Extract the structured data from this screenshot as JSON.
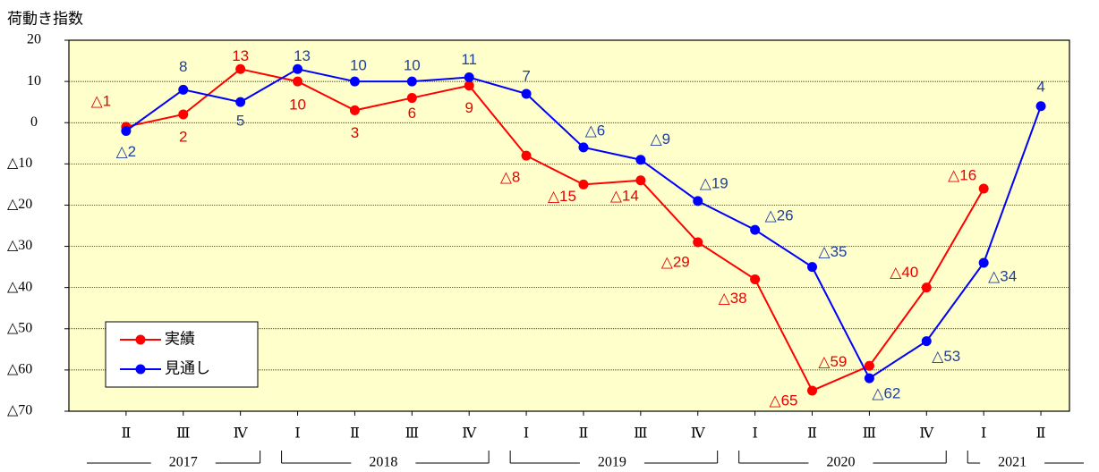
{
  "chart_data": {
    "type": "line",
    "y_axis_title": "荷動き指数",
    "categories": [
      "Ⅱ",
      "Ⅲ",
      "Ⅳ",
      "Ⅰ",
      "Ⅱ",
      "Ⅲ",
      "Ⅳ",
      "Ⅰ",
      "Ⅱ",
      "Ⅲ",
      "Ⅳ",
      "Ⅰ",
      "Ⅱ",
      "Ⅲ",
      "Ⅳ",
      "Ⅰ",
      "Ⅱ"
    ],
    "groups": [
      {
        "label": "2017",
        "count": 3
      },
      {
        "label": "2018",
        "count": 4
      },
      {
        "label": "2019",
        "count": 4
      },
      {
        "label": "2020",
        "count": 4
      },
      {
        "label": "2021",
        "count": 2
      }
    ],
    "series": [
      {
        "name": "実績",
        "color": "#ff0000",
        "label_color": "#e60000",
        "values": [
          -1,
          2,
          13,
          10,
          3,
          6,
          9,
          -8,
          -15,
          -14,
          -29,
          -38,
          -65,
          -59,
          -40,
          -16,
          null
        ],
        "value_labels": [
          "△1",
          "2",
          "13",
          "10",
          "3",
          "6",
          "9",
          "△8",
          "△15",
          "△14",
          "△29",
          "△38",
          "△65",
          "△59",
          "△40",
          "△16",
          null
        ]
      },
      {
        "name": "見通し",
        "color": "#0000ff",
        "label_color": "#1f3f9f",
        "values": [
          -2,
          8,
          5,
          13,
          10,
          10,
          11,
          7,
          -6,
          -9,
          -19,
          -26,
          -35,
          -62,
          -53,
          -34,
          4
        ],
        "value_labels": [
          "△2",
          "8",
          "5",
          "13",
          "10",
          "10",
          "11",
          "7",
          "△6",
          "△9",
          "△19",
          "△26",
          "△35",
          "△62",
          "△53",
          "△34",
          "4"
        ]
      }
    ],
    "ylim": [
      -70,
      20
    ],
    "yticks": [
      20,
      10,
      0,
      {
        "value": -10,
        "label": "△10"
      },
      {
        "value": -20,
        "label": "△20"
      },
      {
        "value": -30,
        "label": "△30"
      },
      {
        "value": -40,
        "label": "△40"
      },
      {
        "value": -50,
        "label": "△50"
      },
      {
        "value": -60,
        "label": "△60"
      },
      {
        "value": -70,
        "label": "△70"
      }
    ],
    "grid": true,
    "plot_background": "#ffffcc",
    "legend": "lower left"
  }
}
